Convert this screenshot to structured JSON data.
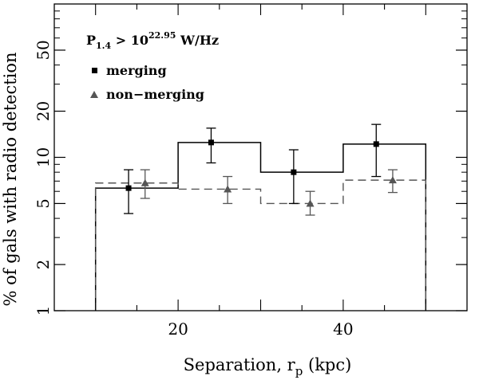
{
  "chart_data": {
    "type": "histogram-errorbar",
    "xlabel": {
      "main": "Separation, r",
      "sub": "p",
      "rest": " (kpc)"
    },
    "ylabel": "% of gals with radio detection",
    "xlim": [
      5,
      55
    ],
    "ylim": [
      1,
      100
    ],
    "yscale": "log",
    "xticks": [
      20,
      40
    ],
    "xtick_labels": [
      "20",
      "40"
    ],
    "yticks": [
      1,
      2,
      5,
      10,
      20,
      50
    ],
    "ytick_labels": [
      "1",
      "2",
      "5",
      "10",
      "20",
      "50"
    ],
    "annotation": {
      "prefix": "P",
      "sub": "1.4",
      "middle": " > 10",
      "sup": "22.95",
      "suffix": " W/Hz"
    },
    "legend": {
      "merging": "merging",
      "nonmerging": "non−merging"
    },
    "series": [
      {
        "name": "merging",
        "color": "#000000",
        "marker": "square",
        "line": "solid",
        "bin_edges": [
          10,
          20,
          30,
          40,
          50
        ],
        "bin_values": [
          6.3,
          12.5,
          8.0,
          12.2
        ],
        "points": [
          {
            "x": 14,
            "y": 6.3,
            "lo": 4.3,
            "hi": 8.3
          },
          {
            "x": 24,
            "y": 12.5,
            "lo": 9.2,
            "hi": 15.5
          },
          {
            "x": 34,
            "y": 8.0,
            "lo": 5.0,
            "hi": 11.2
          },
          {
            "x": 44,
            "y": 12.2,
            "lo": 7.5,
            "hi": 16.4
          }
        ]
      },
      {
        "name": "non-merging",
        "color": "#555555",
        "marker": "triangle",
        "line": "dashed",
        "bin_edges": [
          10,
          20,
          30,
          40,
          50
        ],
        "bin_values": [
          6.8,
          6.2,
          5.0,
          7.1
        ],
        "points": [
          {
            "x": 16,
            "y": 6.8,
            "lo": 5.4,
            "hi": 8.3
          },
          {
            "x": 26,
            "y": 6.2,
            "lo": 5.0,
            "hi": 7.5
          },
          {
            "x": 36,
            "y": 5.0,
            "lo": 4.2,
            "hi": 6.0
          },
          {
            "x": 46,
            "y": 7.1,
            "lo": 5.9,
            "hi": 8.3
          }
        ]
      }
    ]
  }
}
